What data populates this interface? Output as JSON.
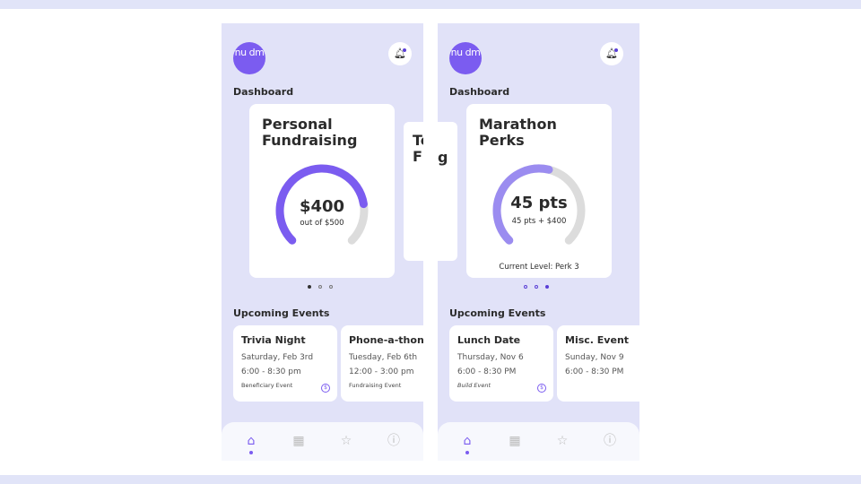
{
  "colors": {
    "accent": "#7b5cf0",
    "accent_light": "#9b8cf0",
    "track": "#dcdcdc",
    "bg": "#e1e2f8"
  },
  "screens": [
    {
      "logo": "nu dm",
      "title": "Dashboard",
      "card": {
        "title": "Personal Fundraising",
        "value": "$400",
        "sub": "out of $500",
        "progress": 0.8
      },
      "carousel_active": 0,
      "section": "Upcoming Events",
      "events": [
        {
          "name": "Trivia Night",
          "date": "Saturday, Feb 3rd",
          "time": "6:00 - 8:30 pm",
          "category": "Beneficiary Event",
          "icon": "dollar-icon"
        },
        {
          "name": "Phone-a-thon",
          "date": "Tuesday, Feb 6th",
          "time": "12:00 - 3:00 pm",
          "category": "Fundraising Event"
        }
      ],
      "peek_card": {
        "title_line1": "Te",
        "title_line2": "F",
        "fragment": "g"
      }
    },
    {
      "logo": "nu dm",
      "title": "Dashboard",
      "card": {
        "title": "Marathon Perks",
        "value": "45 pts",
        "sub": "45 pts + $400",
        "level": "Current Level: Perk 3",
        "progress": 0.55
      },
      "carousel_active": 2,
      "section": "Upcoming Events",
      "events": [
        {
          "name": "Lunch Date",
          "date": "Thursday, Nov 6",
          "time": "6:00 - 8:30 PM",
          "category": "Build Event",
          "icon": "dollar-icon"
        },
        {
          "name": "Misc. Event",
          "date": "Sunday, Nov 9",
          "time": "6:00 - 8:30 PM",
          "category": ""
        }
      ]
    }
  ],
  "nav": [
    "home-icon",
    "calendar-icon",
    "star-icon",
    "info-icon"
  ]
}
